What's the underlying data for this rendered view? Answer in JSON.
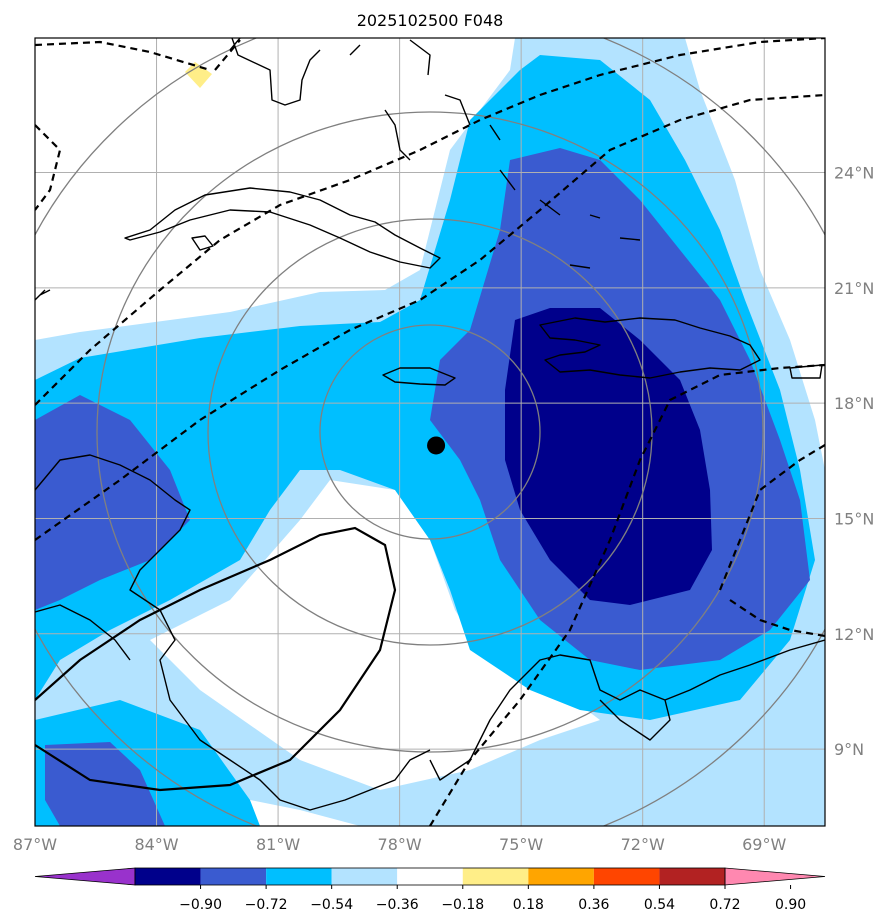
{
  "title": "2025102500 F048",
  "map": {
    "lon_range": [
      -87,
      -67.5
    ],
    "lat_range": [
      7,
      27.5
    ],
    "marker": {
      "lon": -77.1,
      "lat": 16.9
    },
    "lon_ticks": [
      {
        "value": -87,
        "label": "87°W"
      },
      {
        "value": -84,
        "label": "84°W"
      },
      {
        "value": -81,
        "label": "81°W"
      },
      {
        "value": -78,
        "label": "78°W"
      },
      {
        "value": -75,
        "label": "75°W"
      },
      {
        "value": -72,
        "label": "72°W"
      },
      {
        "value": -69,
        "label": "69°W"
      }
    ],
    "lat_ticks": [
      {
        "value": 24,
        "label": "24°N"
      },
      {
        "value": 21,
        "label": "21°N"
      },
      {
        "value": 18,
        "label": "18°N"
      },
      {
        "value": 15,
        "label": "15°N"
      },
      {
        "value": 12,
        "label": "12°N"
      },
      {
        "value": 9,
        "label": "9°N"
      }
    ],
    "grid": true,
    "range_rings": true
  },
  "colorbar": {
    "extend": "both",
    "levels": [
      "−0.90",
      "−0.72",
      "−0.54",
      "−0.36",
      "−0.18",
      "0.18",
      "0.36",
      "0.54",
      "0.72",
      "0.90"
    ],
    "colors": [
      "#9932cc",
      "#00008b",
      "#3a5bd0",
      "#00bfff",
      "#b3e3ff",
      "#ffffff",
      "#ffee88",
      "#ffa500",
      "#ff4500",
      "#b22222",
      "#ff88b0"
    ]
  },
  "colors": {
    "fill_strong": "#00008b",
    "fill_mid": "#3a5bd0",
    "fill_light": "#00bfff",
    "fill_pale": "#b3e3ff",
    "fill_positive": "#ffee88",
    "gridline": "#b0b0b0",
    "range_ring": "#808080"
  }
}
